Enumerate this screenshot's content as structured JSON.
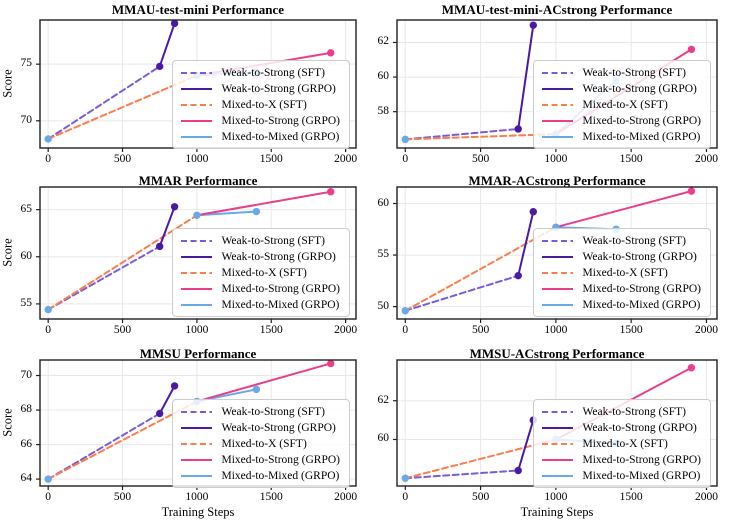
{
  "figure": {
    "xlabel": "Training Steps",
    "ylabel": "Score",
    "x_ticks": [
      0,
      500,
      1000,
      1500,
      2000
    ],
    "xlim": [
      -55,
      2070
    ],
    "background_color": "#ffffff",
    "grid_color": "#e8e8eb",
    "spine_color": "#1f1f1f",
    "text_color": "#000000"
  },
  "palette": {
    "weak_sft": "#7a5cd6",
    "weak_grpo": "#4b1aa0",
    "mixed_sft": "#fb7d4b",
    "mixed_strong": "#ea3e8d",
    "mixed_mixed": "#68a9e8"
  },
  "legend": {
    "entries": [
      {
        "label": "Weak-to-Strong (SFT)",
        "color_key": "weak_sft",
        "dashed": true
      },
      {
        "label": "Weak-to-Strong (GRPO)",
        "color_key": "weak_grpo",
        "dashed": false
      },
      {
        "label": "Mixed-to-X (SFT)",
        "color_key": "mixed_sft",
        "dashed": true
      },
      {
        "label": "Mixed-to-Strong (GRPO)",
        "color_key": "mixed_strong",
        "dashed": false
      },
      {
        "label": "Mixed-to-Mixed (GRPO)",
        "color_key": "mixed_mixed",
        "dashed": false
      }
    ]
  },
  "chart_data": [
    {
      "type": "line",
      "title": "MMAU-test-mini Performance",
      "slug": "mmau-test-mini",
      "show_ylabel": true,
      "show_xlabel": false,
      "y_ticks": [
        70,
        75
      ],
      "ylim": [
        67.6,
        78.9
      ],
      "series": [
        {
          "name": "Weak-to-Strong (SFT)",
          "color_key": "weak_sft",
          "dashed": true,
          "x": [
            0,
            750
          ],
          "y": [
            68.4,
            74.8
          ]
        },
        {
          "name": "Weak-to-Strong (GRPO)",
          "color_key": "weak_grpo",
          "dashed": false,
          "x": [
            750,
            850
          ],
          "y": [
            74.8,
            78.6
          ]
        },
        {
          "name": "Mixed-to-X (SFT)",
          "color_key": "mixed_sft",
          "dashed": true,
          "x": [
            0,
            1000
          ],
          "y": [
            68.4,
            74.0
          ]
        },
        {
          "name": "Mixed-to-Strong (GRPO)",
          "color_key": "mixed_strong",
          "dashed": false,
          "x": [
            1000,
            1900
          ],
          "y": [
            74.0,
            76.0
          ]
        },
        {
          "name": "Mixed-to-Mixed (GRPO)",
          "color_key": "mixed_mixed",
          "dashed": false,
          "x": [
            1000,
            1400
          ],
          "y": [
            74.0,
            74.3
          ]
        }
      ],
      "markers": [
        {
          "x": 0,
          "y": 68.4,
          "color_key": "mixed_mixed"
        },
        {
          "x": 750,
          "y": 74.8,
          "color_key": "weak_grpo"
        },
        {
          "x": 850,
          "y": 78.6,
          "color_key": "weak_grpo"
        },
        {
          "x": 1000,
          "y": 74.0,
          "color_key": "mixed_mixed"
        },
        {
          "x": 1400,
          "y": 74.3,
          "color_key": "mixed_mixed"
        },
        {
          "x": 1900,
          "y": 76.0,
          "color_key": "mixed_strong"
        }
      ]
    },
    {
      "type": "line",
      "title": "MMAU-test-mini-ACstrong Performance",
      "slug": "mmau-test-mini-acstrong",
      "show_ylabel": false,
      "show_xlabel": false,
      "y_ticks": [
        58,
        60,
        62
      ],
      "ylim": [
        55.9,
        63.3
      ],
      "series": [
        {
          "name": "Weak-to-Strong (SFT)",
          "color_key": "weak_sft",
          "dashed": true,
          "x": [
            0,
            750
          ],
          "y": [
            56.4,
            57.0
          ]
        },
        {
          "name": "Weak-to-Strong (GRPO)",
          "color_key": "weak_grpo",
          "dashed": false,
          "x": [
            750,
            850
          ],
          "y": [
            57.0,
            63.0
          ]
        },
        {
          "name": "Mixed-to-X (SFT)",
          "color_key": "mixed_sft",
          "dashed": true,
          "x": [
            0,
            1000
          ],
          "y": [
            56.4,
            56.7
          ]
        },
        {
          "name": "Mixed-to-Strong (GRPO)",
          "color_key": "mixed_strong",
          "dashed": false,
          "x": [
            1000,
            1900
          ],
          "y": [
            56.7,
            61.6
          ]
        },
        {
          "name": "Mixed-to-Mixed (GRPO)",
          "color_key": "mixed_mixed",
          "dashed": false,
          "x": [
            1000,
            1400
          ],
          "y": [
            56.7,
            59.8
          ]
        }
      ],
      "markers": [
        {
          "x": 0,
          "y": 56.4,
          "color_key": "mixed_mixed"
        },
        {
          "x": 750,
          "y": 57.0,
          "color_key": "weak_grpo"
        },
        {
          "x": 850,
          "y": 63.0,
          "color_key": "weak_grpo"
        },
        {
          "x": 1000,
          "y": 56.7,
          "color_key": "mixed_mixed"
        },
        {
          "x": 1400,
          "y": 59.8,
          "color_key": "mixed_mixed"
        },
        {
          "x": 1900,
          "y": 61.6,
          "color_key": "mixed_strong"
        }
      ]
    },
    {
      "type": "line",
      "title": "MMAR Performance",
      "slug": "mmar",
      "show_ylabel": true,
      "show_xlabel": false,
      "y_ticks": [
        55,
        60,
        65
      ],
      "ylim": [
        53.4,
        67.4
      ],
      "series": [
        {
          "name": "Weak-to-Strong (SFT)",
          "color_key": "weak_sft",
          "dashed": true,
          "x": [
            0,
            750
          ],
          "y": [
            54.4,
            61.1
          ]
        },
        {
          "name": "Weak-to-Strong (GRPO)",
          "color_key": "weak_grpo",
          "dashed": false,
          "x": [
            750,
            850
          ],
          "y": [
            61.1,
            65.3
          ]
        },
        {
          "name": "Mixed-to-X (SFT)",
          "color_key": "mixed_sft",
          "dashed": true,
          "x": [
            0,
            1000
          ],
          "y": [
            54.4,
            64.4
          ]
        },
        {
          "name": "Mixed-to-Strong (GRPO)",
          "color_key": "mixed_strong",
          "dashed": false,
          "x": [
            1000,
            1900
          ],
          "y": [
            64.4,
            66.9
          ]
        },
        {
          "name": "Mixed-to-Mixed (GRPO)",
          "color_key": "mixed_mixed",
          "dashed": false,
          "x": [
            1000,
            1400
          ],
          "y": [
            64.4,
            64.8
          ]
        }
      ],
      "markers": [
        {
          "x": 0,
          "y": 54.4,
          "color_key": "mixed_mixed"
        },
        {
          "x": 750,
          "y": 61.1,
          "color_key": "weak_grpo"
        },
        {
          "x": 850,
          "y": 65.3,
          "color_key": "weak_grpo"
        },
        {
          "x": 1000,
          "y": 64.4,
          "color_key": "mixed_mixed"
        },
        {
          "x": 1400,
          "y": 64.8,
          "color_key": "mixed_mixed"
        },
        {
          "x": 1900,
          "y": 66.9,
          "color_key": "mixed_strong"
        }
      ]
    },
    {
      "type": "line",
      "title": "MMAR-ACstrong Performance",
      "slug": "mmar-acstrong",
      "show_ylabel": false,
      "show_xlabel": false,
      "y_ticks": [
        50,
        55,
        60
      ],
      "ylim": [
        48.8,
        61.6
      ],
      "series": [
        {
          "name": "Weak-to-Strong (SFT)",
          "color_key": "weak_sft",
          "dashed": true,
          "x": [
            0,
            750
          ],
          "y": [
            49.6,
            53.0
          ]
        },
        {
          "name": "Weak-to-Strong (GRPO)",
          "color_key": "weak_grpo",
          "dashed": false,
          "x": [
            750,
            850
          ],
          "y": [
            53.0,
            59.2
          ]
        },
        {
          "name": "Mixed-to-X (SFT)",
          "color_key": "mixed_sft",
          "dashed": true,
          "x": [
            0,
            1000
          ],
          "y": [
            49.6,
            57.7
          ]
        },
        {
          "name": "Mixed-to-Strong (GRPO)",
          "color_key": "mixed_strong",
          "dashed": false,
          "x": [
            1000,
            1900
          ],
          "y": [
            57.7,
            61.2
          ]
        },
        {
          "name": "Mixed-to-Mixed (GRPO)",
          "color_key": "mixed_mixed",
          "dashed": false,
          "x": [
            1000,
            1400
          ],
          "y": [
            57.7,
            57.5
          ]
        }
      ],
      "markers": [
        {
          "x": 0,
          "y": 49.6,
          "color_key": "mixed_mixed"
        },
        {
          "x": 750,
          "y": 53.0,
          "color_key": "weak_grpo"
        },
        {
          "x": 850,
          "y": 59.2,
          "color_key": "weak_grpo"
        },
        {
          "x": 1000,
          "y": 57.7,
          "color_key": "mixed_mixed"
        },
        {
          "x": 1400,
          "y": 57.5,
          "color_key": "mixed_mixed"
        },
        {
          "x": 1900,
          "y": 61.2,
          "color_key": "mixed_strong"
        }
      ]
    },
    {
      "type": "line",
      "title": "MMSU Performance",
      "slug": "mmsu",
      "show_ylabel": true,
      "show_xlabel": true,
      "y_ticks": [
        64,
        66,
        68,
        70
      ],
      "ylim": [
        63.6,
        70.9
      ],
      "series": [
        {
          "name": "Weak-to-Strong (SFT)",
          "color_key": "weak_sft",
          "dashed": true,
          "x": [
            0,
            750
          ],
          "y": [
            64.0,
            67.8
          ]
        },
        {
          "name": "Weak-to-Strong (GRPO)",
          "color_key": "weak_grpo",
          "dashed": false,
          "x": [
            750,
            850
          ],
          "y": [
            67.8,
            69.4
          ]
        },
        {
          "name": "Mixed-to-X (SFT)",
          "color_key": "mixed_sft",
          "dashed": true,
          "x": [
            0,
            1000
          ],
          "y": [
            64.0,
            68.5
          ]
        },
        {
          "name": "Mixed-to-Strong (GRPO)",
          "color_key": "mixed_strong",
          "dashed": false,
          "x": [
            1000,
            1900
          ],
          "y": [
            68.5,
            70.7
          ]
        },
        {
          "name": "Mixed-to-Mixed (GRPO)",
          "color_key": "mixed_mixed",
          "dashed": false,
          "x": [
            1000,
            1400
          ],
          "y": [
            68.5,
            69.2
          ]
        }
      ],
      "markers": [
        {
          "x": 0,
          "y": 64.0,
          "color_key": "mixed_mixed"
        },
        {
          "x": 750,
          "y": 67.8,
          "color_key": "weak_grpo"
        },
        {
          "x": 850,
          "y": 69.4,
          "color_key": "weak_grpo"
        },
        {
          "x": 1000,
          "y": 68.5,
          "color_key": "mixed_mixed"
        },
        {
          "x": 1400,
          "y": 69.2,
          "color_key": "mixed_mixed"
        },
        {
          "x": 1900,
          "y": 70.7,
          "color_key": "mixed_strong"
        }
      ]
    },
    {
      "type": "line",
      "title": "MMSU-ACstrong Performance",
      "slug": "mmsu-acstrong",
      "show_ylabel": false,
      "show_xlabel": true,
      "y_ticks": [
        60,
        62
      ],
      "ylim": [
        57.6,
        64.1
      ],
      "series": [
        {
          "name": "Weak-to-Strong (SFT)",
          "color_key": "weak_sft",
          "dashed": true,
          "x": [
            0,
            750
          ],
          "y": [
            58.0,
            58.4
          ]
        },
        {
          "name": "Weak-to-Strong (GRPO)",
          "color_key": "weak_grpo",
          "dashed": false,
          "x": [
            750,
            850
          ],
          "y": [
            58.4,
            61.0
          ]
        },
        {
          "name": "Mixed-to-X (SFT)",
          "color_key": "mixed_sft",
          "dashed": true,
          "x": [
            0,
            1000
          ],
          "y": [
            58.0,
            60.0
          ]
        },
        {
          "name": "Mixed-to-Strong (GRPO)",
          "color_key": "mixed_strong",
          "dashed": false,
          "x": [
            1000,
            1900
          ],
          "y": [
            60.0,
            63.7
          ]
        },
        {
          "name": "Mixed-to-Mixed (GRPO)",
          "color_key": "mixed_mixed",
          "dashed": false,
          "x": [
            1000,
            1400
          ],
          "y": [
            60.0,
            59.8
          ]
        }
      ],
      "markers": [
        {
          "x": 0,
          "y": 58.0,
          "color_key": "mixed_mixed"
        },
        {
          "x": 750,
          "y": 58.4,
          "color_key": "weak_grpo"
        },
        {
          "x": 850,
          "y": 61.0,
          "color_key": "weak_grpo"
        },
        {
          "x": 1000,
          "y": 60.0,
          "color_key": "mixed_mixed"
        },
        {
          "x": 1400,
          "y": 59.8,
          "color_key": "mixed_mixed"
        },
        {
          "x": 1900,
          "y": 63.7,
          "color_key": "mixed_strong"
        }
      ]
    }
  ]
}
